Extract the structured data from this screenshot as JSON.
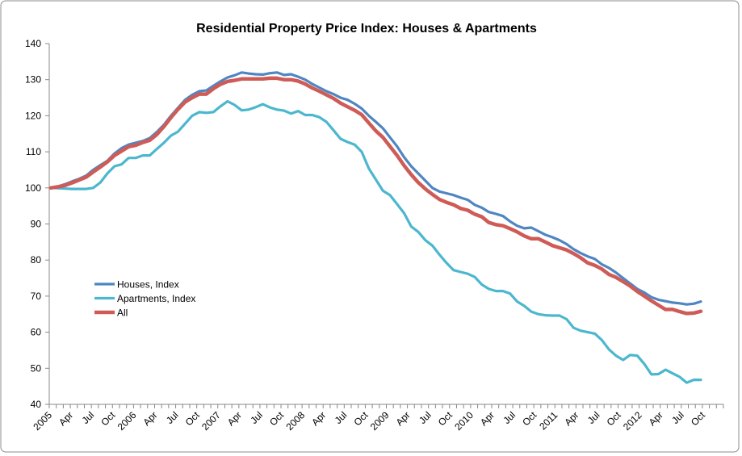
{
  "chart_data": {
    "type": "line",
    "title": "Residential Property Price Index: Houses & Apartments",
    "xlabel": "",
    "ylabel": "",
    "ylim": [
      40,
      140
    ],
    "yticks": [
      40,
      50,
      60,
      70,
      80,
      90,
      100,
      110,
      120,
      130,
      140
    ],
    "x_start": "2005-01",
    "x_frequency": "monthly",
    "x_axis_months": 96,
    "xtick_labels": [
      "2005",
      "Apr",
      "Jul",
      "Oct",
      "2006",
      "Apr",
      "Jul",
      "Oct",
      "2007",
      "Apr",
      "Jul",
      "Oct",
      "2008",
      "Apr",
      "Jul",
      "Oct",
      "2009",
      "Apr",
      "Jul",
      "Oct",
      "2010",
      "Apr",
      "Jul",
      "Oct",
      "2011",
      "Apr",
      "Jul",
      "Oct",
      "2012",
      "Apr",
      "Jul",
      "Oct"
    ],
    "grid": false,
    "legend_position": "left",
    "series": [
      {
        "name": "Houses, Index",
        "color": "#4F86C2",
        "values": [
          100,
          100.4,
          101,
          101.8,
          102.5,
          103.4,
          105,
          106.3,
          107.5,
          109.5,
          111,
          112,
          112.5,
          113,
          113.8,
          115.5,
          117.5,
          120,
          122.2,
          124.4,
          125.8,
          126.8,
          127,
          128.3,
          129.5,
          130.6,
          131.2,
          132,
          131.7,
          131.5,
          131.4,
          131.8,
          132,
          131.3,
          131.5,
          130.8,
          130,
          128.8,
          127.8,
          126.8,
          126,
          125,
          124.4,
          123.3,
          122,
          120,
          118.3,
          116.5,
          114,
          111.5,
          108.5,
          106,
          104,
          102,
          100,
          99,
          98.5,
          98,
          97.3,
          96.7,
          95.3,
          94.5,
          93.3,
          92.8,
          92.2,
          90.7,
          89.5,
          88.8,
          89,
          88,
          87,
          86.3,
          85.5,
          84.4,
          83,
          81.9,
          81,
          80.3,
          78.8,
          77.8,
          76.5,
          75,
          73.5,
          72,
          71,
          69.7,
          69,
          68.6,
          68.2,
          68,
          67.7,
          67.9,
          68.5
        ]
      },
      {
        "name": "Apartments, Index",
        "color": "#4BB7CF",
        "values": [
          100,
          99.9,
          99.8,
          99.7,
          99.7,
          99.7,
          100,
          101.5,
          104,
          106,
          106.5,
          108.3,
          108.3,
          109,
          109,
          110.8,
          112.5,
          114.5,
          115.6,
          117.8,
          120,
          121,
          120.8,
          121,
          122.6,
          124,
          123,
          121.5,
          121.7,
          122.4,
          123.2,
          122.3,
          121.7,
          121.4,
          120.6,
          121.3,
          120.2,
          120.2,
          119.6,
          118.3,
          116,
          113.6,
          112.7,
          112,
          110,
          105.4,
          102.3,
          99.2,
          98,
          95.5,
          93,
          89.3,
          87.8,
          85.5,
          84,
          81.5,
          79.2,
          77.2,
          76.7,
          76.2,
          75.3,
          73.2,
          72,
          71.4,
          71.4,
          70.7,
          68.5,
          67.3,
          65.7,
          65,
          64.7,
          64.6,
          64.6,
          63.6,
          61.2,
          60.4,
          60,
          59.6,
          57.8,
          55.2,
          53.5,
          52.3,
          53.7,
          53.5,
          51.2,
          48.3,
          48.4,
          49.6,
          48.6,
          47.6,
          46,
          46.8,
          46.8
        ]
      },
      {
        "name": "All",
        "color": "#CF5B57",
        "values": [
          100,
          100.3,
          100.7,
          101.4,
          102.2,
          103,
          104.4,
          105.8,
          107.2,
          109,
          110.2,
          111.4,
          111.8,
          112.6,
          113.2,
          114.8,
          117,
          119.5,
          121.8,
          123.8,
          125,
          126,
          126,
          127.5,
          128.7,
          129.5,
          129.8,
          130.2,
          130.2,
          130.2,
          130.2,
          130.4,
          130.4,
          130,
          130,
          129.6,
          128.8,
          127.7,
          126.8,
          125.8,
          124.8,
          123.5,
          122.5,
          121.5,
          120.3,
          118,
          115.8,
          114,
          111.5,
          109,
          106.2,
          103.7,
          101.5,
          99.7,
          98.2,
          96.8,
          96,
          95.3,
          94.3,
          93.8,
          92.7,
          92,
          90.4,
          89.8,
          89.5,
          88.7,
          87.8,
          86.7,
          85.9,
          85.9,
          85,
          84,
          83.4,
          82.8,
          81.8,
          80.6,
          79.2,
          78.5,
          77.5,
          76,
          75.2,
          74,
          72.8,
          71.3,
          70,
          68.7,
          67.5,
          66.3,
          66.3,
          65.7,
          65.2,
          65.3,
          65.8
        ]
      }
    ]
  }
}
